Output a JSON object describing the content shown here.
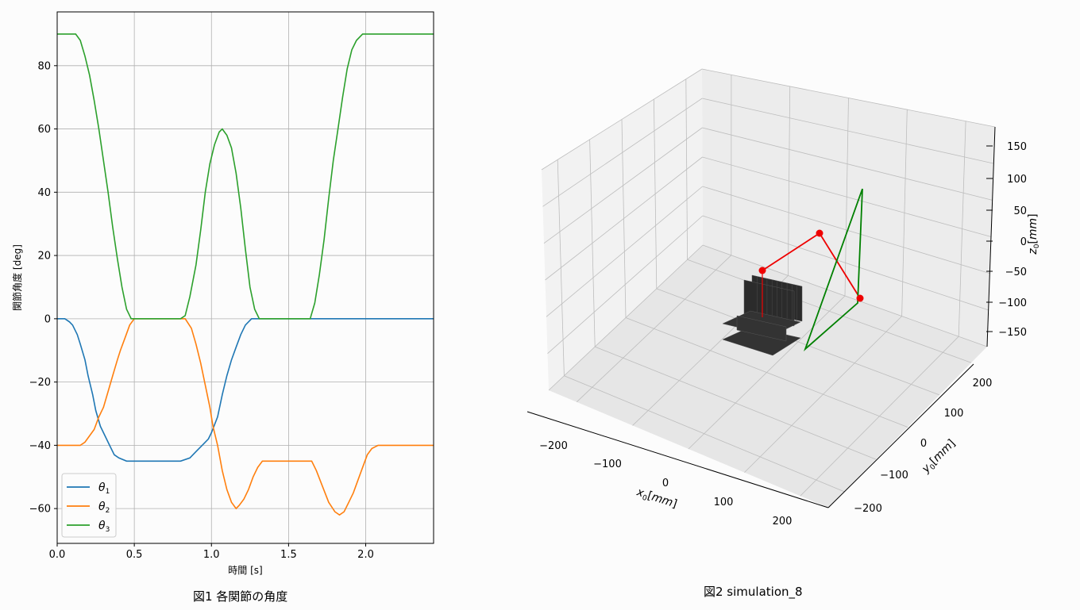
{
  "chart_data": [
    {
      "type": "line",
      "caption": "図1 各関節の角度",
      "xlabel": "時間 [s]",
      "ylabel": "関節角度 [deg]",
      "xlim": [
        0.0,
        2.44
      ],
      "ylim": [
        -71,
        97
      ],
      "xticks": [
        0.0,
        0.5,
        1.0,
        1.5,
        2.0
      ],
      "xtick_labels": [
        "0.0",
        "0.5",
        "1.0",
        "1.5",
        "2.0"
      ],
      "yticks": [
        -60,
        -40,
        -20,
        0,
        20,
        40,
        60,
        80
      ],
      "ytick_labels": [
        "−60",
        "−40",
        "−20",
        "0",
        "20",
        "40",
        "60",
        "80"
      ],
      "grid": true,
      "legend_position": "bottom-left",
      "series": [
        {
          "name": "θ1",
          "sub": "1",
          "color": "#1f77b4",
          "points": [
            [
              0,
              0
            ],
            [
              0.05,
              0
            ],
            [
              0.08,
              -1
            ],
            [
              0.1,
              -2
            ],
            [
              0.13,
              -5
            ],
            [
              0.15,
              -8
            ],
            [
              0.18,
              -13
            ],
            [
              0.2,
              -18
            ],
            [
              0.23,
              -24
            ],
            [
              0.25,
              -29
            ],
            [
              0.28,
              -34
            ],
            [
              0.31,
              -37
            ],
            [
              0.34,
              -40
            ],
            [
              0.37,
              -43
            ],
            [
              0.4,
              -44
            ],
            [
              0.45,
              -45
            ],
            [
              0.5,
              -45
            ],
            [
              0.6,
              -45
            ],
            [
              0.7,
              -45
            ],
            [
              0.8,
              -45
            ],
            [
              0.86,
              -44
            ],
            [
              0.9,
              -42
            ],
            [
              0.94,
              -40
            ],
            [
              0.98,
              -38
            ],
            [
              1.0,
              -36
            ],
            [
              1.04,
              -31
            ],
            [
              1.07,
              -24
            ],
            [
              1.1,
              -18
            ],
            [
              1.13,
              -13
            ],
            [
              1.16,
              -9
            ],
            [
              1.19,
              -5
            ],
            [
              1.22,
              -2
            ],
            [
              1.26,
              0
            ],
            [
              1.3,
              0
            ],
            [
              1.6,
              0
            ],
            [
              2.0,
              0
            ],
            [
              2.44,
              0
            ]
          ]
        },
        {
          "name": "θ2",
          "sub": "2",
          "color": "#ff7f0e",
          "points": [
            [
              0,
              -40
            ],
            [
              0.15,
              -40
            ],
            [
              0.18,
              -39
            ],
            [
              0.21,
              -37
            ],
            [
              0.24,
              -35
            ],
            [
              0.27,
              -31
            ],
            [
              0.3,
              -28
            ],
            [
              0.33,
              -23
            ],
            [
              0.36,
              -18
            ],
            [
              0.39,
              -13
            ],
            [
              0.41,
              -10
            ],
            [
              0.44,
              -6
            ],
            [
              0.47,
              -2
            ],
            [
              0.5,
              0
            ],
            [
              0.6,
              0
            ],
            [
              0.8,
              0
            ],
            [
              0.83,
              0
            ],
            [
              0.87,
              -3
            ],
            [
              0.9,
              -8
            ],
            [
              0.93,
              -14
            ],
            [
              0.96,
              -21
            ],
            [
              0.99,
              -28
            ],
            [
              1.01,
              -34
            ],
            [
              1.04,
              -40
            ],
            [
              1.07,
              -48
            ],
            [
              1.1,
              -54
            ],
            [
              1.13,
              -58
            ],
            [
              1.16,
              -60
            ],
            [
              1.18,
              -59
            ],
            [
              1.21,
              -57
            ],
            [
              1.24,
              -54
            ],
            [
              1.27,
              -50
            ],
            [
              1.3,
              -47
            ],
            [
              1.33,
              -45
            ],
            [
              1.45,
              -45
            ],
            [
              1.6,
              -45
            ],
            [
              1.65,
              -45
            ],
            [
              1.68,
              -48
            ],
            [
              1.72,
              -53
            ],
            [
              1.76,
              -58
            ],
            [
              1.8,
              -61
            ],
            [
              1.83,
              -62
            ],
            [
              1.86,
              -61
            ],
            [
              1.89,
              -58
            ],
            [
              1.92,
              -55
            ],
            [
              1.95,
              -51
            ],
            [
              1.98,
              -47
            ],
            [
              2.01,
              -43
            ],
            [
              2.04,
              -41
            ],
            [
              2.08,
              -40
            ],
            [
              2.2,
              -40
            ],
            [
              2.44,
              -40
            ]
          ]
        },
        {
          "name": "θ3",
          "sub": "3",
          "color": "#2ca02c",
          "points": [
            [
              0,
              90
            ],
            [
              0.12,
              90
            ],
            [
              0.15,
              88
            ],
            [
              0.18,
              83
            ],
            [
              0.21,
              77
            ],
            [
              0.24,
              69
            ],
            [
              0.27,
              60
            ],
            [
              0.3,
              50
            ],
            [
              0.33,
              40
            ],
            [
              0.36,
              29
            ],
            [
              0.39,
              19
            ],
            [
              0.42,
              10
            ],
            [
              0.45,
              3
            ],
            [
              0.48,
              0
            ],
            [
              0.5,
              0
            ],
            [
              0.6,
              0
            ],
            [
              0.8,
              0
            ],
            [
              0.83,
              1
            ],
            [
              0.86,
              7
            ],
            [
              0.9,
              17
            ],
            [
              0.93,
              28
            ],
            [
              0.96,
              40
            ],
            [
              0.99,
              49
            ],
            [
              1.02,
              55
            ],
            [
              1.05,
              59
            ],
            [
              1.07,
              60
            ],
            [
              1.1,
              58
            ],
            [
              1.13,
              54
            ],
            [
              1.16,
              46
            ],
            [
              1.19,
              35
            ],
            [
              1.22,
              22
            ],
            [
              1.25,
              10
            ],
            [
              1.28,
              3
            ],
            [
              1.31,
              0
            ],
            [
              1.4,
              0
            ],
            [
              1.6,
              0
            ],
            [
              1.64,
              0
            ],
            [
              1.67,
              5
            ],
            [
              1.7,
              14
            ],
            [
              1.73,
              25
            ],
            [
              1.76,
              38
            ],
            [
              1.79,
              50
            ],
            [
              1.82,
              60
            ],
            [
              1.85,
              70
            ],
            [
              1.88,
              79
            ],
            [
              1.91,
              85
            ],
            [
              1.94,
              88
            ],
            [
              1.98,
              90
            ],
            [
              2.1,
              90
            ],
            [
              2.44,
              90
            ]
          ]
        }
      ]
    },
    {
      "type": "line",
      "caption": "図2 simulation_8",
      "xlabel": "x0[mm]",
      "ylabel": "y0[mm]",
      "zlabel": "z0[mm]",
      "xtick_labels": [
        "−200",
        "−100",
        "0",
        "100",
        "200"
      ],
      "ytick_labels": [
        "−200",
        "−100",
        "0",
        "100",
        "200"
      ],
      "ztick_labels": [
        "−150",
        "−100",
        "−50",
        "0",
        "50",
        "100",
        "150"
      ],
      "grid": true,
      "series": [
        {
          "name": "arm",
          "color": "#ee0000",
          "marker": "circle"
        },
        {
          "name": "target triangle",
          "color": "#008000"
        },
        {
          "name": "obstacle",
          "color": "#222222"
        }
      ]
    }
  ]
}
